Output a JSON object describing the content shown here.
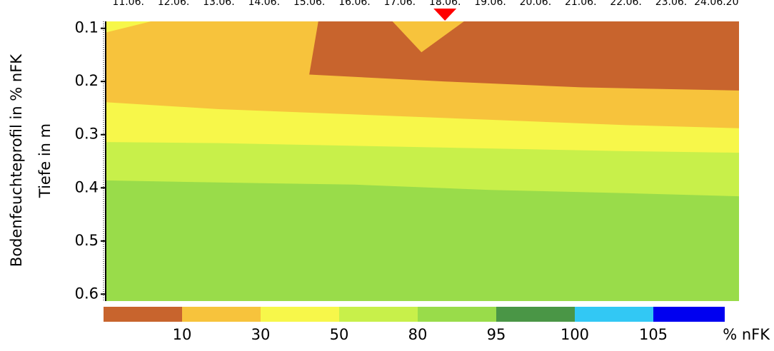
{
  "chart_data": {
    "type": "contour",
    "y_title": "Bodenfeuchteprofil in % nFK",
    "y_subtitle": "Tiefe in m",
    "x": [
      "11.06.",
      "12.06.",
      "13.06.",
      "14.06.",
      "15.06.",
      "16.06.",
      "17.06.",
      "18.06.",
      "19.06.",
      "20.06.",
      "21.06.",
      "22.06.",
      "23.06.",
      "24.06.20"
    ],
    "x_positions": [
      11,
      12,
      13,
      14,
      15,
      16,
      17,
      18,
      19,
      20,
      21,
      22,
      23,
      24
    ],
    "xlim": [
      10.5,
      24.5
    ],
    "ylim": [
      0.087,
      0.613
    ],
    "yticks": [
      0.1,
      0.2,
      0.3,
      0.4,
      0.5,
      0.6
    ],
    "y_inverted": true,
    "marker_x": 18,
    "marker_color": "#ff0000",
    "background_color": "#f7c33c",
    "bands": [
      {
        "color": "#f7f74a",
        "top": [
          [
            10.5,
            0.239
          ],
          [
            13,
            0.252
          ],
          [
            16,
            0.262
          ],
          [
            19,
            0.272
          ],
          [
            22,
            0.282
          ],
          [
            24.5,
            0.288
          ]
        ]
      },
      {
        "color": "#c8f04a",
        "top": [
          [
            10.5,
            0.314
          ],
          [
            13,
            0.316
          ],
          [
            16,
            0.321
          ],
          [
            19,
            0.326
          ],
          [
            22,
            0.331
          ],
          [
            24.5,
            0.334
          ]
        ]
      },
      {
        "color": "#99dc4a",
        "top": [
          [
            10.5,
            0.386
          ],
          [
            13,
            0.39
          ],
          [
            16,
            0.394
          ],
          [
            19,
            0.404
          ],
          [
            22,
            0.41
          ],
          [
            24.5,
            0.416
          ]
        ]
      }
    ],
    "patches": [
      {
        "color": "#c8642d",
        "points": [
          [
            15.2,
            0.087
          ],
          [
            16.84,
            0.087
          ],
          [
            17.48,
            0.145
          ],
          [
            18.42,
            0.087
          ],
          [
            24.5,
            0.087
          ],
          [
            24.5,
            0.217
          ],
          [
            21,
            0.211
          ],
          [
            18,
            0.2
          ],
          [
            15,
            0.187
          ]
        ]
      },
      {
        "color": "#f7f74a",
        "points": [
          [
            10.5,
            0.087
          ],
          [
            11.5,
            0.087
          ],
          [
            10.5,
            0.108
          ]
        ]
      }
    ],
    "colorbar": {
      "colors": [
        "#c8642d",
        "#f7c33c",
        "#f7f74a",
        "#c8f04a",
        "#99dc4a",
        "#4a9646",
        "#32c8f4",
        "#0000f0"
      ],
      "levels": [
        10,
        30,
        50,
        80,
        95,
        100,
        105
      ],
      "unit": "% nFK"
    }
  }
}
